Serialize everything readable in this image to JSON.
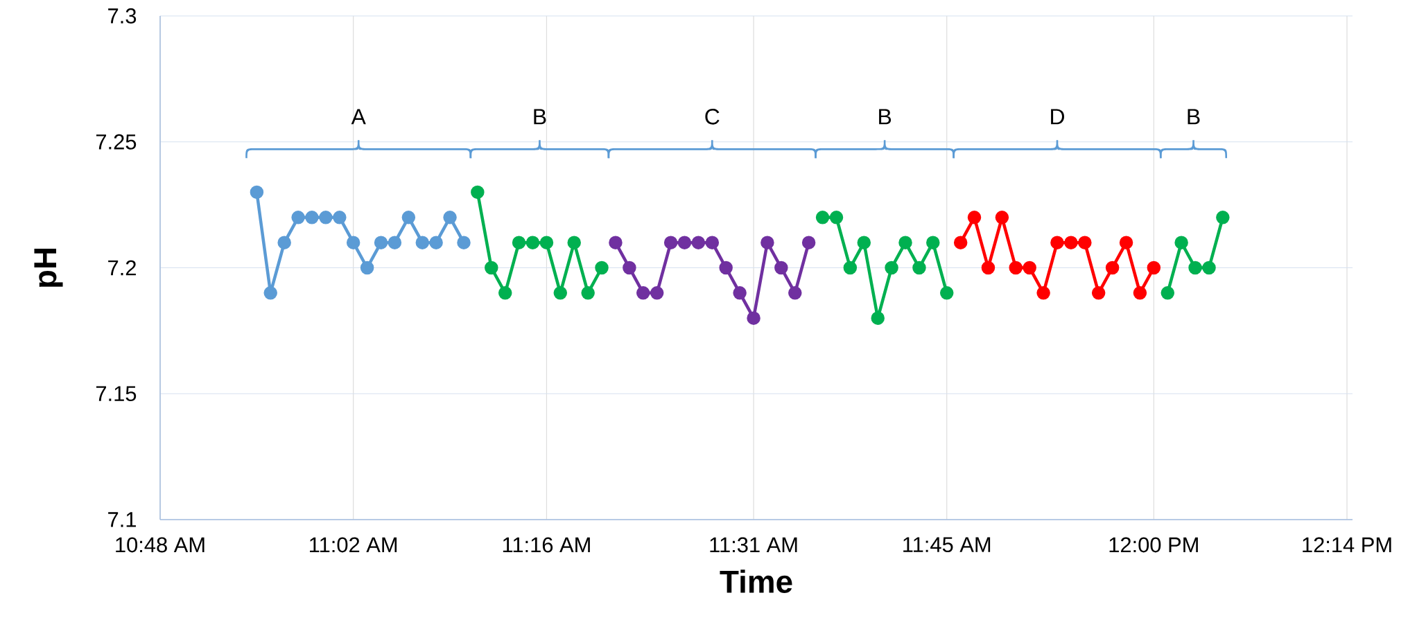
{
  "chart_data": {
    "type": "line",
    "xlabel": "Time",
    "ylabel": "pH",
    "xlim": [
      10.8,
      12.24
    ],
    "ylim": [
      7.1,
      7.3
    ],
    "xticks": [
      {
        "value": 10.8,
        "label": "10:48 AM"
      },
      {
        "value": 11.0333,
        "label": "11:02 AM"
      },
      {
        "value": 11.2667,
        "label": "11:16 AM"
      },
      {
        "value": 11.5167,
        "label": "11:31 AM"
      },
      {
        "value": 11.75,
        "label": "11:45 AM"
      },
      {
        "value": 12.0,
        "label": "12:00 PM"
      },
      {
        "value": 12.2333,
        "label": "12:14 PM"
      }
    ],
    "yticks": [
      7.1,
      7.15,
      7.2,
      7.25,
      7.3
    ],
    "grid": true,
    "marker": "circle",
    "line_style": "solid",
    "series": [
      {
        "color": "#5b9bd5",
        "x": [
          10.9167,
          10.9333,
          10.95,
          10.9667,
          10.9833,
          11.0,
          11.0167,
          11.0333,
          11.05,
          11.0667,
          11.0833,
          11.1,
          11.1167,
          11.1333,
          11.15,
          11.1667
        ],
        "values": [
          7.23,
          7.19,
          7.21,
          7.22,
          7.22,
          7.22,
          7.22,
          7.21,
          7.2,
          7.21,
          7.21,
          7.22,
          7.21,
          7.21,
          7.22,
          7.21
        ]
      },
      {
        "color": "#00b050",
        "x": [
          11.1833,
          11.2,
          11.2167,
          11.2333,
          11.25,
          11.2667,
          11.2833,
          11.3,
          11.3167,
          11.3333
        ],
        "values": [
          7.23,
          7.2,
          7.19,
          7.21,
          7.21,
          7.21,
          7.19,
          7.21,
          7.19,
          7.2
        ]
      },
      {
        "color": "#7030a0",
        "x": [
          11.35,
          11.3667,
          11.3833,
          11.4,
          11.4167,
          11.4333,
          11.45,
          11.4667,
          11.4833,
          11.5,
          11.5167,
          11.5333,
          11.55,
          11.5667,
          11.5833
        ],
        "values": [
          7.21,
          7.2,
          7.19,
          7.19,
          7.21,
          7.21,
          7.21,
          7.21,
          7.2,
          7.19,
          7.18,
          7.21,
          7.2,
          7.19,
          7.21
        ]
      },
      {
        "color": "#00b050",
        "x": [
          11.6,
          11.6167,
          11.6333,
          11.65,
          11.6667,
          11.6833,
          11.7,
          11.7167,
          11.7333,
          11.75
        ],
        "values": [
          7.22,
          7.22,
          7.2,
          7.21,
          7.18,
          7.2,
          7.21,
          7.2,
          7.21,
          7.19
        ]
      },
      {
        "color": "#ff0000",
        "x": [
          11.7667,
          11.7833,
          11.8,
          11.8167,
          11.8333,
          11.85,
          11.8667,
          11.8833,
          11.9,
          11.9167,
          11.9333,
          11.95,
          11.9667,
          11.9833,
          12.0
        ],
        "values": [
          7.21,
          7.22,
          7.2,
          7.22,
          7.2,
          7.2,
          7.19,
          7.21,
          7.21,
          7.21,
          7.19,
          7.2,
          7.21,
          7.19,
          7.2
        ]
      },
      {
        "color": "#00b050",
        "x": [
          12.0167,
          12.0333,
          12.05,
          12.0667,
          12.0833
        ],
        "values": [
          7.19,
          7.21,
          7.2,
          7.2,
          7.22
        ]
      }
    ],
    "annotations": [
      "A",
      "B",
      "C",
      "B",
      "D",
      "B"
    ]
  }
}
